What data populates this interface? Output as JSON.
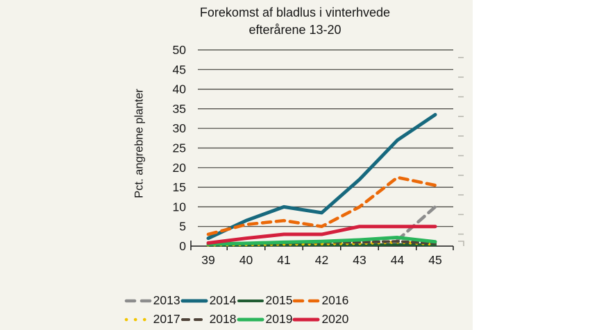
{
  "title": {
    "line1": "Forekomst af bladlus i vinterhvede",
    "line2": "efterårene 13-20"
  },
  "y_axis": {
    "label": "Pct. angrebne planter",
    "ticks": [
      0,
      5,
      10,
      15,
      20,
      25,
      30,
      35,
      40,
      45,
      50
    ]
  },
  "x_axis": {
    "ticks": [
      "39",
      "40",
      "41",
      "42",
      "43",
      "44",
      "45"
    ]
  },
  "colors": {
    "background": "#f4f3ec",
    "grid": "#3f3e39",
    "axis": "#1a1a1a",
    "text": "#161616",
    "secondary_tick": "#b9b8b0"
  },
  "chart_data": {
    "type": "line",
    "title": "Forekomst af bladlus i vinterhvede efterårene 13-20",
    "xlabel": "",
    "ylabel": "Pct. angrebne planter",
    "x": [
      39,
      40,
      41,
      42,
      43,
      44,
      45
    ],
    "ylim": [
      0,
      50
    ],
    "grid": true,
    "legend_position": "bottom",
    "series": [
      {
        "name": "2013",
        "color": "#8d8d8d",
        "style": "dashed",
        "values": [
          null,
          null,
          null,
          null,
          null,
          1.5,
          10
        ]
      },
      {
        "name": "2014",
        "color": "#17697e",
        "style": "solid",
        "values": [
          2,
          6.5,
          10,
          8.5,
          17,
          27,
          33.5
        ]
      },
      {
        "name": "2015",
        "color": "#215c33",
        "style": "solid",
        "values": [
          0.2,
          0.2,
          0.3,
          0.3,
          0.3,
          0.4,
          0.3
        ]
      },
      {
        "name": "2016",
        "color": "#eb6909",
        "style": "dashed",
        "values": [
          3,
          5.5,
          6.5,
          5,
          10,
          17.5,
          15.5
        ]
      },
      {
        "name": "2017",
        "color": "#f2c500",
        "style": "dotted",
        "values": [
          0.3,
          0.4,
          0.5,
          0.6,
          0.7,
          1,
          0.5
        ]
      },
      {
        "name": "2018",
        "color": "#4e4238",
        "style": "dashed-short",
        "values": [
          0.4,
          0.6,
          0.8,
          1,
          1,
          1.2,
          0.7
        ]
      },
      {
        "name": "2019",
        "color": "#2ab55b",
        "style": "solid",
        "values": [
          0.5,
          0.7,
          1,
          1.2,
          1.6,
          2.2,
          1.1
        ]
      },
      {
        "name": "2020",
        "color": "#d41f3d",
        "style": "solid",
        "values": [
          0.8,
          2,
          3,
          3,
          5,
          5,
          5
        ]
      }
    ]
  }
}
